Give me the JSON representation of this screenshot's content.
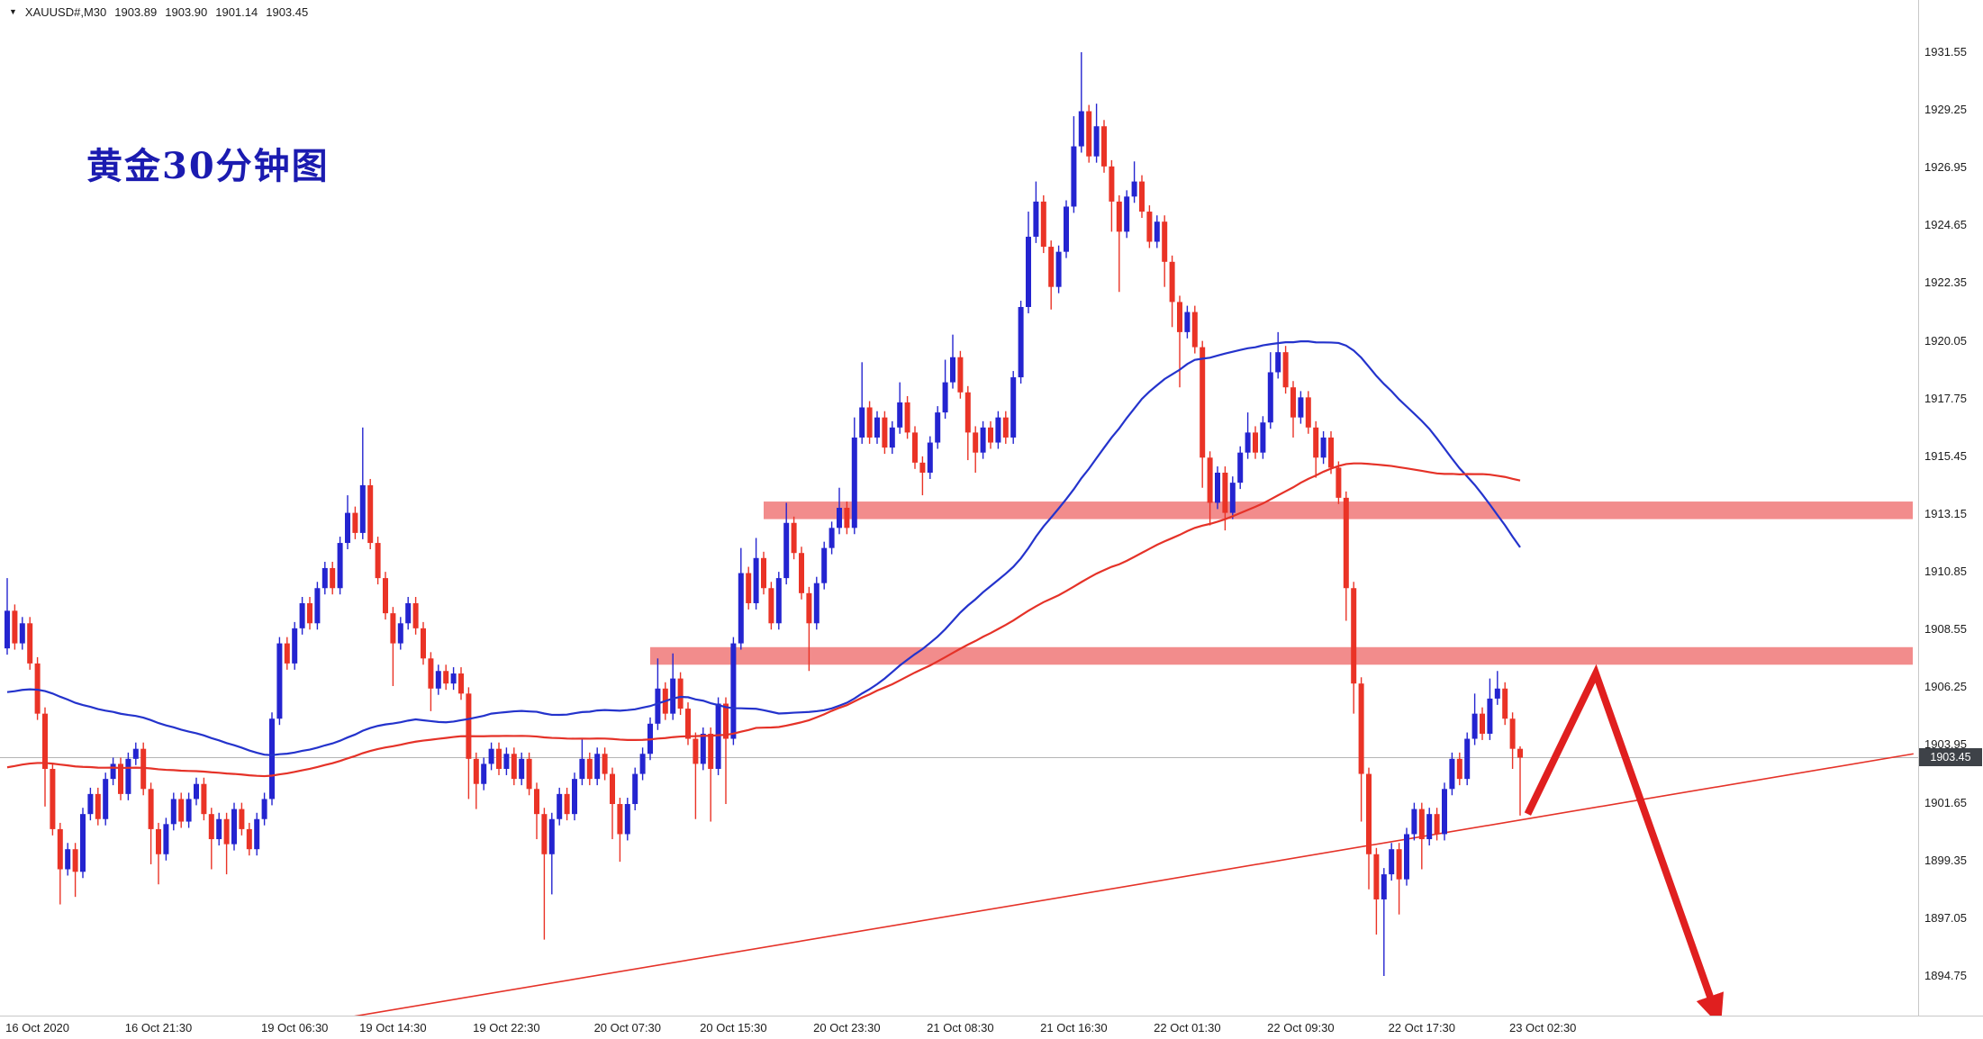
{
  "header": {
    "dropdown_icon": "▼",
    "symbol": "XAUUSD#,M30",
    "open": "1903.89",
    "high": "1903.90",
    "low": "1901.14",
    "close": "1903.45"
  },
  "annotation": {
    "text": "黄金30分钟图"
  },
  "price_axis": {
    "labels": [
      "1931.55",
      "1929.25",
      "1926.95",
      "1924.65",
      "1922.35",
      "1920.05",
      "1917.75",
      "1915.45",
      "1913.15",
      "1910.85",
      "1908.55",
      "1906.25",
      "1903.95",
      "1901.65",
      "1899.35",
      "1897.05",
      "1894.75"
    ],
    "current_price": "1903.45"
  },
  "time_axis": {
    "labels": [
      {
        "label": "16 Oct 2020",
        "bar": 4
      },
      {
        "label": "16 Oct 21:30",
        "bar": 20
      },
      {
        "label": "19 Oct 06:30",
        "bar": 38
      },
      {
        "label": "19 Oct 14:30",
        "bar": 51
      },
      {
        "label": "19 Oct 22:30",
        "bar": 66
      },
      {
        "label": "20 Oct 07:30",
        "bar": 82
      },
      {
        "label": "20 Oct 15:30",
        "bar": 96
      },
      {
        "label": "20 Oct 23:30",
        "bar": 111
      },
      {
        "label": "21 Oct 08:30",
        "bar": 126
      },
      {
        "label": "21 Oct 16:30",
        "bar": 141
      },
      {
        "label": "22 Oct 01:30",
        "bar": 156
      },
      {
        "label": "22 Oct 09:30",
        "bar": 171
      },
      {
        "label": "22 Oct 17:30",
        "bar": 187
      },
      {
        "label": "23 Oct 02:30",
        "bar": 203
      }
    ]
  },
  "colors": {
    "background": "#ffffff",
    "bull": "#2424d0",
    "bear": "#ea3326",
    "zone": "#f28c8c",
    "ma_blue": "#2433cc",
    "ma_red": "#e53228",
    "trendline": "#e53228",
    "arrow": "#e01f1f",
    "axis_text": "#1c1c1c",
    "separator": "#c8c8c8",
    "current_price_line": "#b4b4b4",
    "badge_bg": "#3e4248",
    "badge_text": "#ffffff",
    "annotation": "#1b1bb0"
  },
  "chart_data": {
    "type": "candlestick",
    "symbol": "XAUUSD#",
    "timeframe": "M30",
    "ylim": [
      1893.2,
      1932.8
    ],
    "grid": false,
    "first_open": 1907.8,
    "default_wick": 0.25,
    "closes": [
      1909.3,
      1908.0,
      1908.8,
      1907.2,
      1905.2,
      1903.0,
      1900.6,
      1899.0,
      1899.8,
      1898.9,
      1901.2,
      1902.0,
      1901.0,
      1902.6,
      1903.2,
      1902.0,
      1903.4,
      1903.8,
      1902.2,
      1900.6,
      1899.6,
      1900.8,
      1901.8,
      1900.9,
      1901.8,
      1902.4,
      1901.2,
      1900.2,
      1901.0,
      1900.0,
      1901.4,
      1900.6,
      1899.8,
      1901.0,
      1901.8,
      1905.0,
      1908.0,
      1907.2,
      1908.6,
      1909.6,
      1908.8,
      1910.2,
      1911.0,
      1910.2,
      1912.0,
      1913.2,
      1912.4,
      1914.3,
      1912.0,
      1910.6,
      1909.2,
      1908.0,
      1908.8,
      1909.6,
      1908.6,
      1907.4,
      1906.2,
      1906.9,
      1906.4,
      1906.8,
      1906.0,
      1903.4,
      1902.4,
      1903.2,
      1903.8,
      1903.0,
      1903.6,
      1902.6,
      1903.4,
      1902.2,
      1901.2,
      1899.6,
      1901.0,
      1902.0,
      1901.2,
      1902.6,
      1903.4,
      1902.6,
      1903.6,
      1902.8,
      1901.6,
      1900.4,
      1901.6,
      1902.8,
      1903.6,
      1904.8,
      1906.2,
      1905.2,
      1906.6,
      1905.4,
      1904.2,
      1903.2,
      1904.4,
      1903.0,
      1905.6,
      1904.2,
      1908.0,
      1910.8,
      1909.6,
      1911.4,
      1910.2,
      1908.8,
      1910.6,
      1912.8,
      1911.6,
      1910.0,
      1908.8,
      1910.4,
      1911.8,
      1912.6,
      1913.4,
      1912.6,
      1916.2,
      1917.4,
      1916.2,
      1917.0,
      1915.8,
      1916.6,
      1917.6,
      1916.4,
      1915.2,
      1914.8,
      1916.0,
      1917.2,
      1918.4,
      1919.4,
      1918.0,
      1916.4,
      1915.6,
      1916.6,
      1916.0,
      1917.0,
      1916.2,
      1918.6,
      1921.4,
      1924.2,
      1925.6,
      1923.8,
      1922.2,
      1923.6,
      1925.4,
      1927.8,
      1929.2,
      1927.4,
      1928.6,
      1927.0,
      1925.6,
      1924.4,
      1925.8,
      1926.4,
      1925.2,
      1924.0,
      1924.8,
      1923.2,
      1921.6,
      1920.4,
      1921.2,
      1919.8,
      1915.4,
      1913.6,
      1914.8,
      1913.2,
      1914.4,
      1915.6,
      1916.4,
      1915.6,
      1916.8,
      1918.8,
      1919.6,
      1918.2,
      1917.0,
      1917.8,
      1916.6,
      1915.4,
      1916.2,
      1915.0,
      1913.8,
      1910.2,
      1906.4,
      1902.8,
      1899.6,
      1897.8,
      1898.8,
      1899.8,
      1898.6,
      1900.4,
      1901.4,
      1900.2,
      1901.2,
      1900.4,
      1902.2,
      1903.4,
      1902.6,
      1904.2,
      1905.2,
      1904.4,
      1905.8,
      1906.2,
      1905.0,
      1903.8,
      1903.45
    ],
    "wick_overrides": [
      {
        "i": 0,
        "h": 1910.6
      },
      {
        "i": 5,
        "l": 1901.5
      },
      {
        "i": 7,
        "l": 1897.6
      },
      {
        "i": 9,
        "l": 1897.9
      },
      {
        "i": 19,
        "l": 1899.2
      },
      {
        "i": 20,
        "l": 1898.4
      },
      {
        "i": 27,
        "l": 1899.0
      },
      {
        "i": 29,
        "l": 1898.8
      },
      {
        "i": 45,
        "h": 1913.9
      },
      {
        "i": 47,
        "h": 1916.6
      },
      {
        "i": 51,
        "l": 1906.3
      },
      {
        "i": 56,
        "l": 1905.3
      },
      {
        "i": 61,
        "l": 1901.8
      },
      {
        "i": 62,
        "l": 1901.4
      },
      {
        "i": 70,
        "l": 1900.2
      },
      {
        "i": 71,
        "l": 1896.2
      },
      {
        "i": 72,
        "l": 1898.0
      },
      {
        "i": 76,
        "h": 1904.2
      },
      {
        "i": 80,
        "l": 1900.2
      },
      {
        "i": 81,
        "l": 1899.3
      },
      {
        "i": 86,
        "h": 1907.4
      },
      {
        "i": 88,
        "h": 1907.6
      },
      {
        "i": 91,
        "l": 1901.0
      },
      {
        "i": 93,
        "l": 1900.9
      },
      {
        "i": 95,
        "l": 1901.6
      },
      {
        "i": 97,
        "h": 1911.8
      },
      {
        "i": 99,
        "h": 1912.2
      },
      {
        "i": 103,
        "h": 1913.6
      },
      {
        "i": 106,
        "l": 1906.9
      },
      {
        "i": 110,
        "h": 1914.2
      },
      {
        "i": 112,
        "h": 1917.0
      },
      {
        "i": 113,
        "h": 1919.2
      },
      {
        "i": 118,
        "h": 1918.4
      },
      {
        "i": 121,
        "l": 1913.9
      },
      {
        "i": 124,
        "h": 1919.3
      },
      {
        "i": 125,
        "h": 1920.3
      },
      {
        "i": 127,
        "l": 1915.3
      },
      {
        "i": 128,
        "l": 1914.8
      },
      {
        "i": 135,
        "h": 1925.2
      },
      {
        "i": 136,
        "h": 1926.4
      },
      {
        "i": 138,
        "l": 1921.3
      },
      {
        "i": 141,
        "h": 1929.0
      },
      {
        "i": 142,
        "h": 1931.55
      },
      {
        "i": 144,
        "h": 1929.5
      },
      {
        "i": 146,
        "l": 1924.4
      },
      {
        "i": 147,
        "l": 1922.0
      },
      {
        "i": 149,
        "h": 1927.2
      },
      {
        "i": 153,
        "l": 1922.2
      },
      {
        "i": 154,
        "l": 1920.6
      },
      {
        "i": 155,
        "l": 1918.2
      },
      {
        "i": 158,
        "l": 1914.2
      },
      {
        "i": 159,
        "l": 1912.7
      },
      {
        "i": 161,
        "l": 1912.5
      },
      {
        "i": 164,
        "h": 1917.2
      },
      {
        "i": 167,
        "h": 1919.6
      },
      {
        "i": 168,
        "h": 1920.4
      },
      {
        "i": 170,
        "l": 1916.2
      },
      {
        "i": 173,
        "l": 1914.6
      },
      {
        "i": 177,
        "l": 1908.9
      },
      {
        "i": 178,
        "l": 1905.2
      },
      {
        "i": 179,
        "l": 1900.9
      },
      {
        "i": 180,
        "l": 1898.2
      },
      {
        "i": 181,
        "l": 1896.4
      },
      {
        "i": 182,
        "l": 1894.75
      },
      {
        "i": 184,
        "l": 1897.2
      },
      {
        "i": 187,
        "l": 1899.0
      },
      {
        "i": 194,
        "h": 1906.0
      },
      {
        "i": 196,
        "h": 1906.6
      },
      {
        "i": 197,
        "h": 1906.9
      },
      {
        "i": 199,
        "l": 1903.0
      },
      {
        "i": 200,
        "h": 1903.9,
        "l": 1901.14
      }
    ],
    "moving_averages": [
      {
        "name": "ma-blue",
        "period": 55,
        "seed": 1906.0,
        "color": "#2433cc",
        "width": 2.2
      },
      {
        "name": "ma-red",
        "period": 100,
        "seed": 1903.0,
        "color": "#e53228",
        "width": 2.2
      }
    ],
    "zones": [
      {
        "name": "resistance-zone-1913",
        "price_top": 1913.65,
        "price_bottom": 1912.95,
        "start_bar": 100
      },
      {
        "name": "support-zone-1907",
        "price_top": 1907.85,
        "price_bottom": 1907.15,
        "start_bar": 85
      }
    ],
    "trendline": {
      "x1_bar": 45,
      "price1": 1893.1,
      "x2_bar": 252,
      "price2": 1903.6,
      "width": 1.6
    },
    "projection_arrow": {
      "points": [
        [
          201,
          1901.2
        ],
        [
          210,
          1906.8
        ],
        [
          225.5,
          1893.6
        ]
      ],
      "width": 8
    }
  }
}
